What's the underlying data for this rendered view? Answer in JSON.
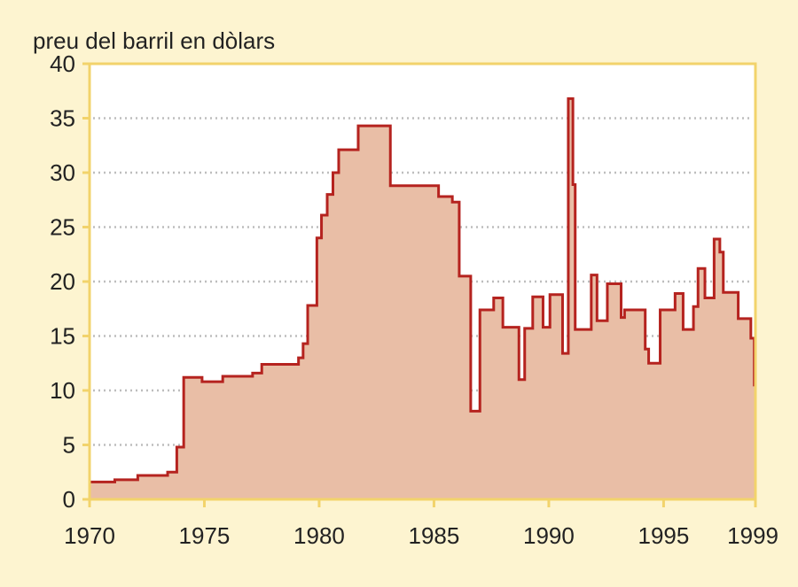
{
  "chart_data": {
    "type": "area",
    "title": "",
    "ylabel": "preu del barril en dòlars",
    "xlabel": "",
    "xlim": [
      1970,
      1999
    ],
    "ylim": [
      0,
      40
    ],
    "x_ticks": [
      1970,
      1975,
      1980,
      1985,
      1990,
      1995,
      1999
    ],
    "y_ticks": [
      0,
      5,
      10,
      15,
      20,
      25,
      30,
      35,
      40
    ],
    "grid": "horizontal dotted",
    "colors": {
      "background": "#fdf4d0",
      "plot_background": "#ffffff",
      "frame": "#f2d36b",
      "fill": "#e9bea6",
      "line": "#b5231f",
      "grid": "#bdbdbd"
    },
    "series": [
      {
        "step": "post",
        "points": [
          [
            1970.0,
            1.6
          ],
          [
            1971.1,
            1.8
          ],
          [
            1972.1,
            2.2
          ],
          [
            1973.4,
            2.5
          ],
          [
            1973.8,
            4.8
          ],
          [
            1974.1,
            11.2
          ],
          [
            1974.9,
            10.8
          ],
          [
            1975.8,
            11.3
          ],
          [
            1977.1,
            11.6
          ],
          [
            1977.5,
            12.4
          ],
          [
            1979.1,
            13.0
          ],
          [
            1979.3,
            14.3
          ],
          [
            1979.5,
            17.8
          ],
          [
            1979.9,
            24.0
          ],
          [
            1980.1,
            26.1
          ],
          [
            1980.35,
            28.0
          ],
          [
            1980.6,
            30.0
          ],
          [
            1980.85,
            32.1
          ],
          [
            1981.7,
            34.3
          ],
          [
            1983.1,
            28.8
          ],
          [
            1984.3,
            28.8
          ],
          [
            1985.2,
            27.8
          ],
          [
            1985.8,
            27.3
          ],
          [
            1986.1,
            20.5
          ],
          [
            1986.6,
            8.1
          ],
          [
            1987.0,
            17.4
          ],
          [
            1987.6,
            18.5
          ],
          [
            1988.0,
            15.8
          ],
          [
            1988.7,
            11.0
          ],
          [
            1988.95,
            15.7
          ],
          [
            1989.3,
            18.6
          ],
          [
            1989.75,
            15.8
          ],
          [
            1990.05,
            18.8
          ],
          [
            1990.6,
            13.4
          ],
          [
            1990.85,
            36.8
          ],
          [
            1991.05,
            28.9
          ],
          [
            1991.15,
            15.6
          ],
          [
            1991.85,
            20.6
          ],
          [
            1992.1,
            16.4
          ],
          [
            1992.55,
            19.8
          ],
          [
            1993.15,
            16.7
          ],
          [
            1993.3,
            17.4
          ],
          [
            1994.2,
            13.8
          ],
          [
            1994.35,
            12.5
          ],
          [
            1994.85,
            17.4
          ],
          [
            1995.5,
            18.9
          ],
          [
            1995.85,
            15.6
          ],
          [
            1996.3,
            17.7
          ],
          [
            1996.5,
            21.2
          ],
          [
            1996.8,
            18.5
          ],
          [
            1997.2,
            23.9
          ],
          [
            1997.45,
            22.7
          ],
          [
            1997.6,
            19.0
          ],
          [
            1998.25,
            16.6
          ],
          [
            1998.8,
            14.8
          ],
          [
            1998.95,
            10.5
          ],
          [
            1999.0,
            10.5
          ]
        ]
      }
    ]
  }
}
